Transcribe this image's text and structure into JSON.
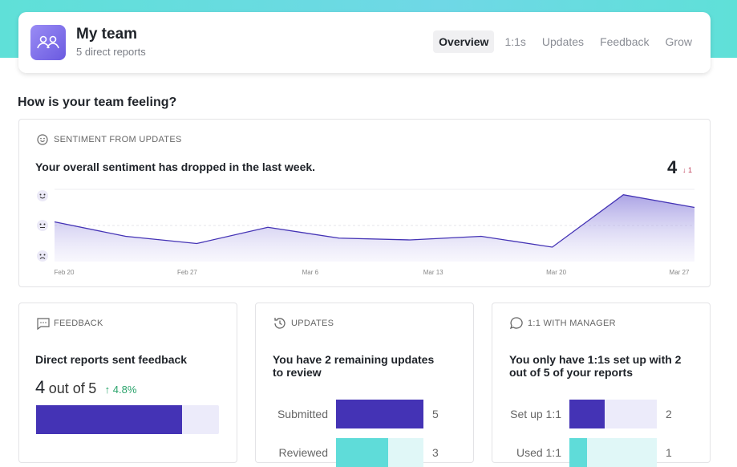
{
  "header": {
    "title": "My team",
    "subtitle": "5 direct reports",
    "tabs": [
      "Overview",
      "1:1s",
      "Updates",
      "Feedback",
      "Grow"
    ],
    "active_tab": 0
  },
  "section_title": "How is your team feeling?",
  "sentiment": {
    "label": "SENTIMENT FROM UPDATES",
    "message": "Your overall sentiment has dropped in the last week.",
    "score": 4,
    "change": "↓ 1"
  },
  "chart_data": {
    "type": "area",
    "categories": [
      null,
      null,
      null,
      null,
      null,
      null,
      null,
      null,
      null,
      null
    ],
    "x_tick_labels": [
      "Feb 20",
      "Feb 27",
      "Mar 6",
      "Mar 13",
      "Mar 20",
      "Mar 27"
    ],
    "values": [
      3.2,
      2.4,
      2.0,
      2.9,
      2.3,
      2.2,
      2.4,
      1.8,
      4.7,
      4.0
    ],
    "ylim": [
      1,
      5
    ],
    "color": "#4433b5"
  },
  "feedback": {
    "label": "FEEDBACK",
    "message": "Direct reports sent feedback",
    "count": 4,
    "of": "out of",
    "total": 5,
    "change": "↑ 4.8%",
    "color": "#4433b5"
  },
  "updates": {
    "label": "UPDATES",
    "message": "You have 2 remaining updates to review",
    "xlim": [
      0,
      5
    ],
    "rows": [
      {
        "name": "Submitted",
        "value": 5,
        "color": "#4433b5"
      },
      {
        "name": "Reviewed",
        "value": 3,
        "color": "#5fdcd9"
      }
    ]
  },
  "one_on_one": {
    "label": "1:1 WITH MANAGER",
    "message": "You only have 1:1s set up with 2 out of 5 of your reports",
    "xlim": [
      0,
      5
    ],
    "rows": [
      {
        "name": "Set up 1:1",
        "value": 2,
        "color": "#4433b5"
      },
      {
        "name": "Used 1:1",
        "value": 1,
        "color": "#5fdcd9"
      }
    ]
  }
}
